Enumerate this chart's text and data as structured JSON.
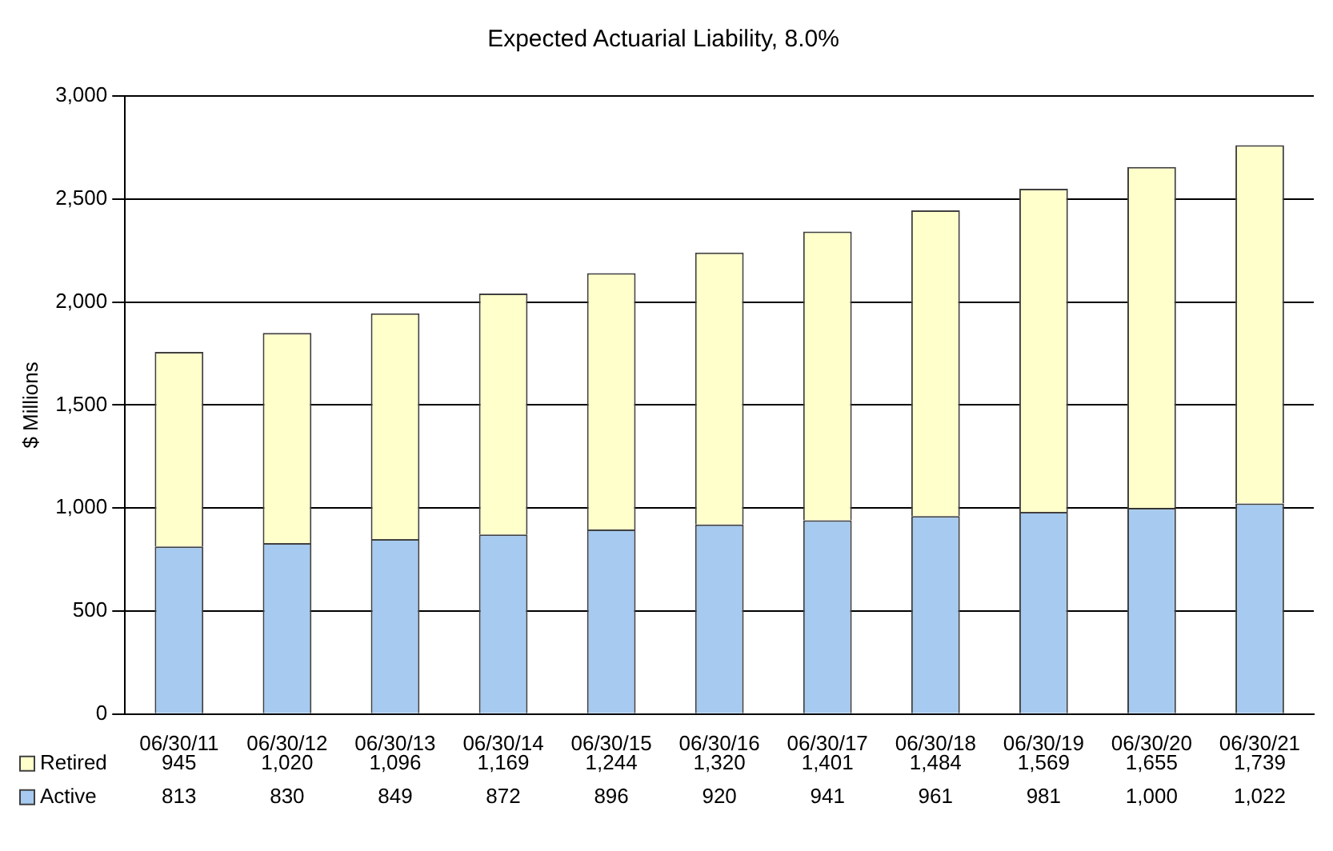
{
  "chart_data": {
    "type": "bar",
    "title": "Expected Actuarial Liability, 8.0%",
    "ylabel": "$ Millions",
    "stacked": true,
    "grid": "y",
    "legend": "bottom left",
    "categories": [
      "06/30/11",
      "06/30/12",
      "06/30/13",
      "06/30/14",
      "06/30/15",
      "06/30/16",
      "06/30/17",
      "06/30/18",
      "06/30/19",
      "06/30/20",
      "06/30/21"
    ],
    "series": [
      {
        "name": "Active",
        "color": "#a6caf0",
        "values": [
          813,
          830,
          849,
          872,
          896,
          920,
          941,
          961,
          981,
          1000,
          1022
        ],
        "value_labels": [
          "813",
          "830",
          "849",
          "872",
          "896",
          "920",
          "941",
          "961",
          "981",
          "1,000",
          "1,022"
        ]
      },
      {
        "name": "Retired",
        "color": "#ffffcc",
        "values": [
          945,
          1020,
          1096,
          1169,
          1244,
          1320,
          1401,
          1484,
          1569,
          1655,
          1739
        ],
        "value_labels": [
          "945",
          "1,020",
          "1,096",
          "1,169",
          "1,244",
          "1,320",
          "1,401",
          "1,484",
          "1,569",
          "1,655",
          "1,739"
        ]
      }
    ],
    "ylim": [
      0,
      3000
    ],
    "yticks": [
      0,
      500,
      {
        "value": 1000,
        "label": "1,000"
      },
      {
        "value": 1500,
        "label": "1,500"
      },
      {
        "value": 2000,
        "label": "2,000"
      },
      {
        "value": 2500,
        "label": "2,500"
      },
      {
        "value": 3000,
        "label": "3,000"
      }
    ]
  }
}
